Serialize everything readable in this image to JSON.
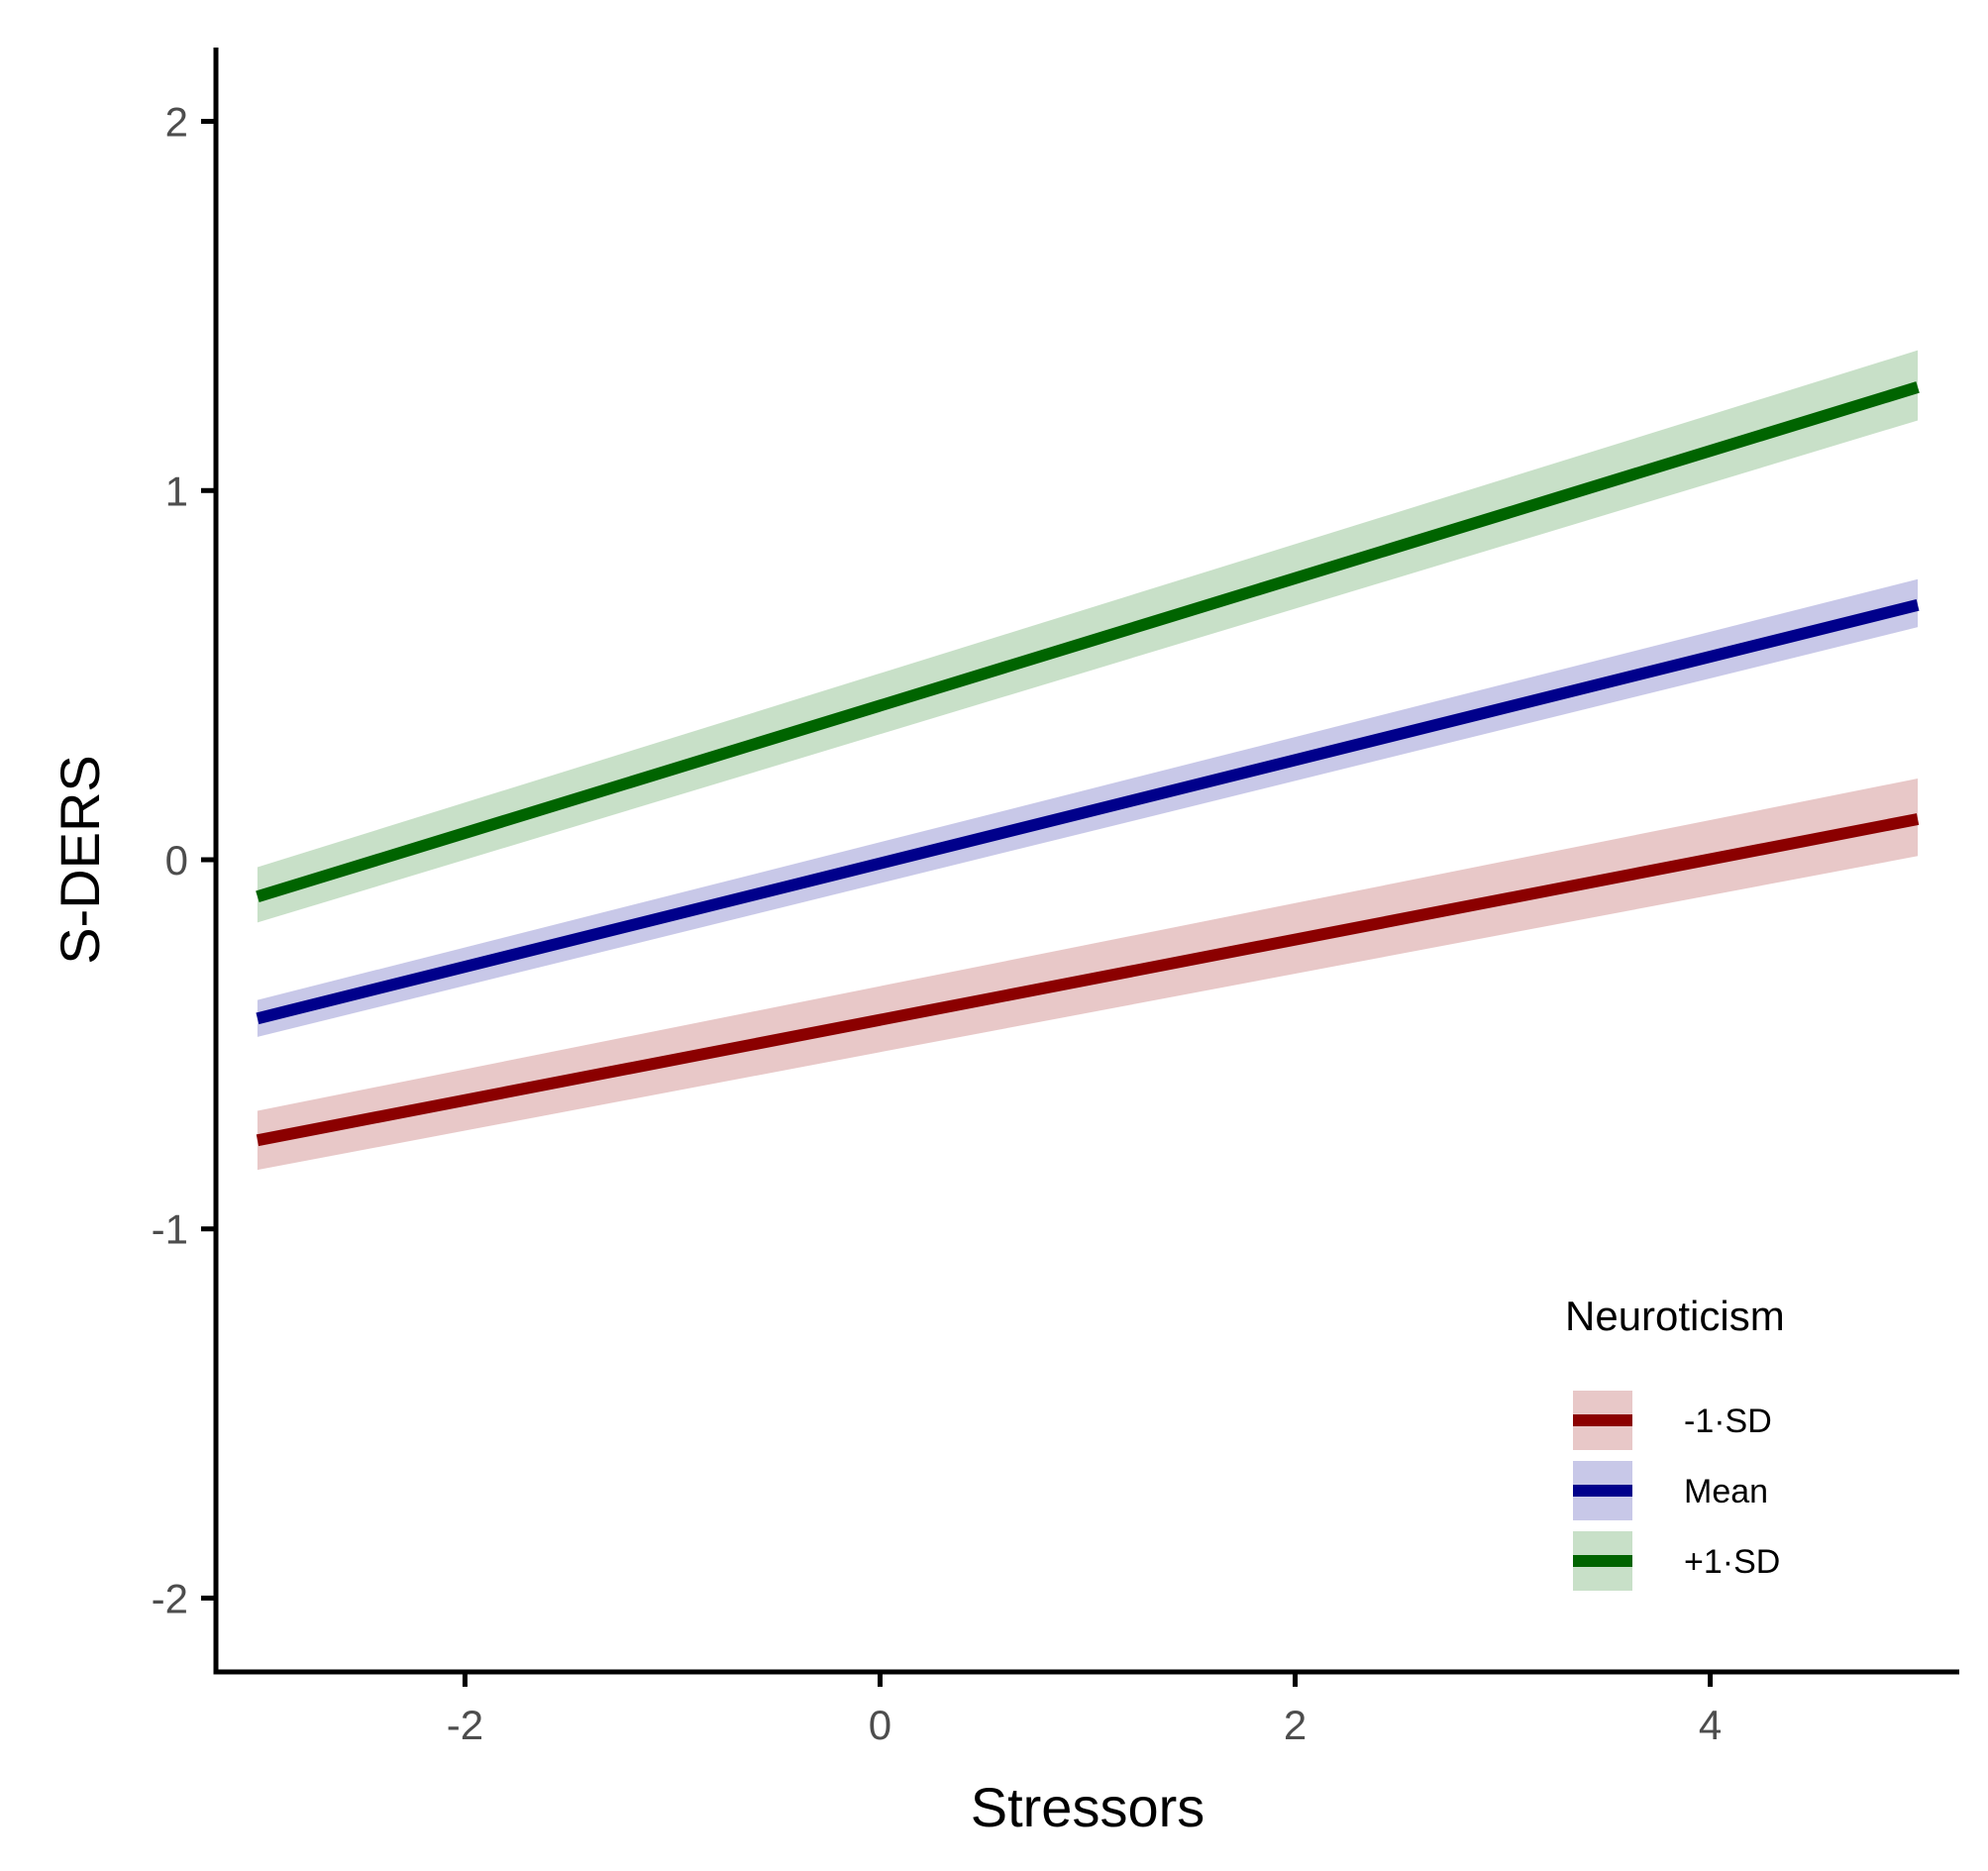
{
  "chart_data": {
    "type": "line",
    "title": "",
    "xlabel": "Stressors",
    "ylabel": "S-DERS",
    "xlim": [
      -3.2,
      5.2
    ],
    "ylim": [
      -2.2,
      2.2
    ],
    "x_ticks": [
      -2,
      0,
      2,
      4
    ],
    "x_tick_labels": [
      "-2",
      "0",
      "2",
      "4"
    ],
    "y_ticks": [
      -2,
      -1,
      0,
      1,
      2
    ],
    "y_tick_labels": [
      "-2",
      "-1",
      "0",
      "1",
      "2"
    ],
    "grid": false,
    "legend": {
      "title": "Neuroticism",
      "placement": "bottom-right"
    },
    "series": [
      {
        "name": "-1·SD",
        "color": "#8B0000",
        "band_color": "#d9a3a3",
        "x": [
          -3,
          5
        ],
        "y": [
          -0.76,
          0.11
        ],
        "lower": [
          -0.84,
          0.01
        ],
        "upper": [
          -0.68,
          0.22
        ]
      },
      {
        "name": "Mean",
        "color": "#00008B",
        "band_color": "#a3a3d9",
        "x": [
          -3,
          5
        ],
        "y": [
          -0.43,
          0.69
        ],
        "lower": [
          -0.48,
          0.63
        ],
        "upper": [
          -0.38,
          0.76
        ]
      },
      {
        "name": "+1·SD",
        "color": "#006400",
        "band_color": "#a3cca3",
        "x": [
          -3,
          5
        ],
        "y": [
          -0.1,
          1.28
        ],
        "lower": [
          -0.17,
          1.19
        ],
        "upper": [
          -0.02,
          1.38
        ]
      }
    ]
  }
}
